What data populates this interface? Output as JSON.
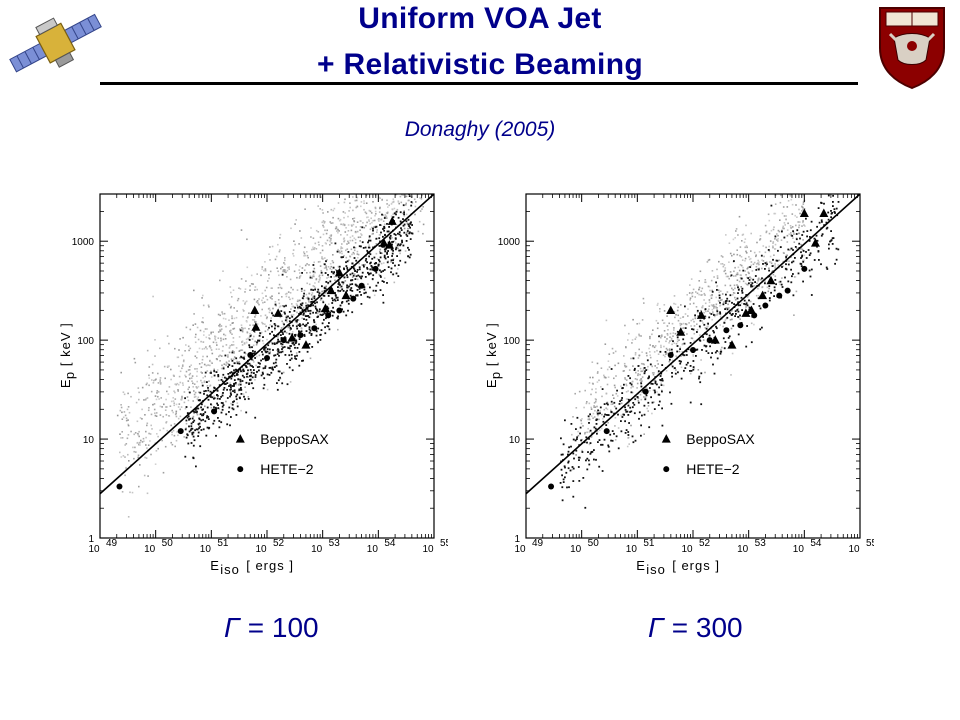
{
  "header": {
    "title_line1": "Uniform VOA Jet",
    "title_line2": "+ Relativistic Beaming",
    "subtitle": "Donaghy (2005)"
  },
  "colors": {
    "title": "#00008b",
    "sim_points": "#a9a9a9",
    "obs_points": "#000000",
    "fit_line": "#000000",
    "frame": "#000000"
  },
  "icons": {
    "left_logo": "satellite-icon",
    "right_logo": "university-crest-icon"
  },
  "chart_data": [
    {
      "type": "scatter",
      "caption_symbol": "Γ",
      "caption_eq": "= 100",
      "xlabel": "E",
      "xlabel_sub": "iso",
      "xlabel_unit": "[ ergs ]",
      "ylabel": "E",
      "ylabel_sub": "p",
      "ylabel_unit": "[ keV ]",
      "x_scale": "log",
      "y_scale": "log",
      "xlim": [
        1e+49,
        1e+55
      ],
      "ylim": [
        1,
        3000
      ],
      "x_ticks": [
        {
          "base": "10",
          "exp": "49"
        },
        {
          "base": "10",
          "exp": "50"
        },
        {
          "base": "10",
          "exp": "51"
        },
        {
          "base": "10",
          "exp": "52"
        },
        {
          "base": "10",
          "exp": "53"
        },
        {
          "base": "10",
          "exp": "54"
        },
        {
          "base": "10",
          "exp": "55"
        }
      ],
      "y_ticks": [
        "1",
        "10",
        "100",
        "1000"
      ],
      "legend": [
        {
          "marker": "triangle",
          "label": "BeppoSAX"
        },
        {
          "marker": "circle",
          "label": "HETE−2"
        }
      ],
      "legend_position": "lower-right",
      "fit_line": {
        "x0": 1e+49,
        "y0": 2.8,
        "x1": 1e+55,
        "y1": 3000
      },
      "simulated_points": {
        "color": "gray",
        "approx_count": 2500,
        "gray_region": {
          "log_x_range": [
            49.3,
            54.8
          ],
          "log_ep_offset_mean": 0.35,
          "log_ep_offset_std": 0.3
        },
        "black_region": {
          "log_x_range": [
            50.5,
            54.6
          ],
          "log_ep_offset_mean": -0.1,
          "log_ep_offset_std": 0.18
        }
      },
      "bepposax": [
        [
          51.78,
          2.3
        ],
        [
          51.8,
          2.13
        ],
        [
          52.2,
          2.27
        ],
        [
          52.45,
          2.02
        ],
        [
          52.7,
          1.95
        ],
        [
          53.15,
          2.5
        ],
        [
          53.3,
          2.68
        ],
        [
          53.42,
          2.45
        ],
        [
          54.1,
          2.98
        ],
        [
          54.25,
          3.2
        ],
        [
          54.2,
          2.96
        ],
        [
          53.05,
          2.32
        ]
      ],
      "hete2": [
        [
          49.35,
          0.52
        ],
        [
          50.45,
          1.08
        ],
        [
          51.05,
          1.28
        ],
        [
          51.7,
          1.85
        ],
        [
          52.0,
          1.82
        ],
        [
          52.3,
          2.0
        ],
        [
          52.6,
          2.05
        ],
        [
          52.85,
          2.12
        ],
        [
          53.1,
          2.25
        ],
        [
          53.3,
          2.3
        ],
        [
          53.55,
          2.42
        ],
        [
          53.7,
          2.55
        ],
        [
          53.95,
          2.72
        ]
      ]
    },
    {
      "type": "scatter",
      "caption_symbol": "Γ",
      "caption_eq": "= 300",
      "xlabel": "E",
      "xlabel_sub": "iso",
      "xlabel_unit": "[ ergs ]",
      "ylabel": "E",
      "ylabel_sub": "p",
      "ylabel_unit": "[ keV ]",
      "x_scale": "log",
      "y_scale": "log",
      "xlim": [
        1e+49,
        1e+55
      ],
      "ylim": [
        1,
        3000
      ],
      "x_ticks": [
        {
          "base": "10",
          "exp": "49"
        },
        {
          "base": "10",
          "exp": "50"
        },
        {
          "base": "10",
          "exp": "51"
        },
        {
          "base": "10",
          "exp": "52"
        },
        {
          "base": "10",
          "exp": "53"
        },
        {
          "base": "10",
          "exp": "54"
        },
        {
          "base": "10",
          "exp": "55"
        }
      ],
      "y_ticks": [
        "1",
        "10",
        "100",
        "1000"
      ],
      "legend": [
        {
          "marker": "triangle",
          "label": "BeppoSAX"
        },
        {
          "marker": "circle",
          "label": "HETE−2"
        }
      ],
      "legend_position": "lower-right",
      "fit_line": {
        "x0": 1e+49,
        "y0": 2.8,
        "x1": 1e+55,
        "y1": 3000
      },
      "simulated_points": {
        "color": "gray",
        "approx_count": 1500,
        "gray_region": {
          "log_x_range": [
            49.8,
            54.0
          ],
          "log_ep_offset_mean": 0.25,
          "log_ep_offset_std": 0.25
        },
        "black_region": {
          "log_x_range": [
            49.6,
            54.6
          ],
          "log_ep_offset_mean": -0.05,
          "log_ep_offset_std": 0.2
        }
      },
      "bepposax": [
        [
          51.6,
          2.3
        ],
        [
          51.78,
          2.08
        ],
        [
          52.15,
          2.25
        ],
        [
          52.4,
          2.0
        ],
        [
          52.7,
          1.95
        ],
        [
          52.95,
          2.27
        ],
        [
          53.25,
          2.45
        ],
        [
          53.4,
          2.6
        ],
        [
          54.0,
          3.28
        ],
        [
          54.35,
          3.28
        ],
        [
          54.2,
          2.98
        ],
        [
          53.05,
          2.3
        ]
      ],
      "hete2": [
        [
          49.45,
          0.52
        ],
        [
          50.45,
          1.08
        ],
        [
          51.15,
          1.48
        ],
        [
          51.6,
          1.85
        ],
        [
          52.0,
          1.9
        ],
        [
          52.3,
          2.0
        ],
        [
          52.6,
          2.1
        ],
        [
          52.85,
          2.15
        ],
        [
          53.1,
          2.25
        ],
        [
          53.3,
          2.35
        ],
        [
          53.55,
          2.45
        ],
        [
          53.7,
          2.5
        ],
        [
          54.0,
          2.72
        ]
      ]
    }
  ]
}
